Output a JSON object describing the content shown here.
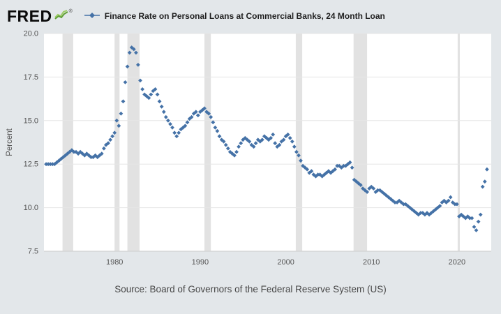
{
  "header": {
    "logo_text": "FRED",
    "registered_mark": "®",
    "series_label": "Finance Rate on Personal Loans at Commercial Banks, 24 Month Loan"
  },
  "footer": {
    "source": "Source: Board of Governors of the Federal Reserve System (US)"
  },
  "colors": {
    "marker": "#4572a7",
    "recession_band": "#e2e2e2",
    "grid": "#e6e6e6",
    "axis_line": "#cccccc",
    "tick_text": "#555555",
    "plot_bg": "#ffffff",
    "page_bg": "#e3e7ea",
    "logo_green_dark": "#5f9e36",
    "logo_green_light": "#9ccc65"
  },
  "chart_data": {
    "type": "scatter",
    "title": "Finance Rate on Personal Loans at Commercial Banks, 24 Month Loan",
    "xlabel": "",
    "ylabel": "Percent",
    "ylim": [
      7.5,
      20.0
    ],
    "xlim": [
      1971.75,
      2024.0
    ],
    "yticks": [
      7.5,
      10.0,
      12.5,
      15.0,
      17.5,
      20.0
    ],
    "xticks": [
      1980,
      1990,
      2000,
      2010,
      2020
    ],
    "grid": true,
    "legend_position": "top",
    "marker": "diamond",
    "frequency": "quarterly",
    "recession_bands": [
      [
        1973.92,
        1975.17
      ],
      [
        1980.0,
        1980.58
      ],
      [
        1981.5,
        1982.92
      ],
      [
        1990.5,
        1991.25
      ],
      [
        2001.17,
        2001.92
      ],
      [
        2007.92,
        2009.5
      ],
      [
        2020.08,
        2020.33
      ]
    ],
    "series": [
      {
        "name": "Finance Rate on Personal Loans at Commercial Banks, 24 Month Loan",
        "x_start": 1972.0,
        "x_step": 0.25,
        "x_end": 2023.5,
        "values": [
          12.5,
          12.5,
          12.5,
          12.5,
          12.5,
          12.6,
          12.7,
          12.8,
          12.9,
          13.0,
          13.1,
          13.2,
          13.3,
          13.2,
          13.2,
          13.1,
          13.2,
          13.1,
          13.0,
          13.1,
          13.0,
          12.9,
          12.9,
          13.0,
          12.9,
          13.0,
          13.1,
          13.4,
          13.6,
          13.7,
          13.9,
          14.1,
          14.3,
          15.0,
          14.7,
          15.4,
          16.1,
          17.2,
          18.1,
          18.9,
          19.2,
          19.1,
          18.9,
          18.2,
          17.3,
          16.8,
          16.5,
          16.4,
          16.3,
          16.5,
          16.7,
          16.8,
          16.5,
          16.1,
          15.8,
          15.5,
          15.2,
          15.0,
          14.8,
          14.6,
          14.3,
          14.1,
          14.3,
          14.5,
          14.6,
          14.7,
          14.9,
          15.1,
          15.2,
          15.4,
          15.5,
          15.3,
          15.5,
          15.6,
          15.7,
          15.5,
          15.4,
          15.2,
          14.9,
          14.6,
          14.4,
          14.1,
          13.9,
          13.8,
          13.6,
          13.4,
          13.2,
          13.1,
          13.0,
          13.2,
          13.5,
          13.7,
          13.9,
          14.0,
          13.9,
          13.8,
          13.6,
          13.5,
          13.7,
          13.9,
          13.8,
          13.9,
          14.1,
          14.0,
          13.9,
          14.0,
          14.2,
          13.7,
          13.5,
          13.6,
          13.8,
          13.9,
          14.1,
          14.2,
          14.0,
          13.8,
          13.5,
          13.2,
          13.0,
          12.7,
          12.4,
          12.3,
          12.2,
          12.0,
          12.1,
          11.9,
          11.8,
          11.9,
          11.9,
          11.8,
          11.9,
          12.0,
          12.1,
          12.0,
          12.1,
          12.2,
          12.4,
          12.4,
          12.3,
          12.4,
          12.4,
          12.5,
          12.6,
          12.3,
          11.6,
          11.5,
          11.4,
          11.3,
          11.1,
          11.0,
          10.9,
          11.1,
          11.2,
          11.1,
          10.9,
          11.0,
          11.0,
          10.9,
          10.8,
          10.7,
          10.6,
          10.5,
          10.4,
          10.3,
          10.3,
          10.4,
          10.3,
          10.2,
          10.2,
          10.1,
          10.0,
          9.9,
          9.8,
          9.7,
          9.6,
          9.7,
          9.7,
          9.6,
          9.7,
          9.6,
          9.7,
          9.8,
          9.9,
          10.0,
          10.1,
          10.3,
          10.4,
          10.3,
          10.4,
          10.6,
          10.3,
          10.2,
          10.2,
          9.5,
          9.6,
          9.5,
          9.4,
          9.5,
          9.4,
          9.4,
          8.9,
          8.7,
          9.2,
          9.6,
          11.2,
          11.5,
          12.2
        ]
      }
    ]
  }
}
